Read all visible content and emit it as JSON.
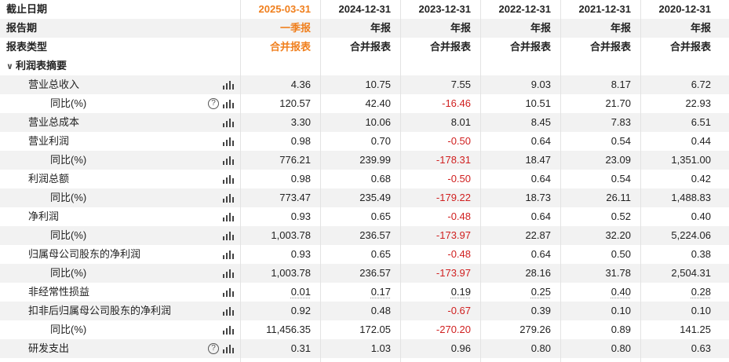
{
  "header": {
    "rows": [
      {
        "label": "截止日期",
        "values": [
          "2025-03-31",
          "2024-12-31",
          "2023-12-31",
          "2022-12-31",
          "2021-12-31",
          "2020-12-31"
        ]
      },
      {
        "label": "报告期",
        "values": [
          "一季报",
          "年报",
          "年报",
          "年报",
          "年报",
          "年报"
        ]
      },
      {
        "label": "报表类型",
        "values": [
          "合并报表",
          "合并报表",
          "合并报表",
          "合并报表",
          "合并报表",
          "合并报表"
        ]
      }
    ],
    "highlight_color": "#f07f1d"
  },
  "section": {
    "chevron": "∨",
    "label": "利润表摘要"
  },
  "rows": [
    {
      "label": "营业总收入",
      "indent": 1,
      "help": false,
      "values": [
        "4.36",
        "10.75",
        "7.55",
        "9.03",
        "8.17",
        "6.72"
      ]
    },
    {
      "label": "同比(%)",
      "indent": 2,
      "help": true,
      "values": [
        "120.57",
        "42.40",
        "-16.46",
        "10.51",
        "21.70",
        "22.93"
      ]
    },
    {
      "label": "营业总成本",
      "indent": 1,
      "help": false,
      "values": [
        "3.30",
        "10.06",
        "8.01",
        "8.45",
        "7.83",
        "6.51"
      ]
    },
    {
      "label": "营业利润",
      "indent": 1,
      "help": false,
      "values": [
        "0.98",
        "0.70",
        "-0.50",
        "0.64",
        "0.54",
        "0.44"
      ]
    },
    {
      "label": "同比(%)",
      "indent": 2,
      "help": false,
      "values": [
        "776.21",
        "239.99",
        "-178.31",
        "18.47",
        "23.09",
        "1,351.00"
      ]
    },
    {
      "label": "利润总额",
      "indent": 1,
      "help": false,
      "values": [
        "0.98",
        "0.68",
        "-0.50",
        "0.64",
        "0.54",
        "0.42"
      ]
    },
    {
      "label": "同比(%)",
      "indent": 2,
      "help": false,
      "values": [
        "773.47",
        "235.49",
        "-179.22",
        "18.73",
        "26.11",
        "1,488.83"
      ]
    },
    {
      "label": "净利润",
      "indent": 1,
      "help": false,
      "values": [
        "0.93",
        "0.65",
        "-0.48",
        "0.64",
        "0.52",
        "0.40"
      ]
    },
    {
      "label": "同比(%)",
      "indent": 2,
      "help": false,
      "values": [
        "1,003.78",
        "236.57",
        "-173.97",
        "22.87",
        "32.20",
        "5,224.06"
      ]
    },
    {
      "label": "归属母公司股东的净利润",
      "indent": 1,
      "help": false,
      "values": [
        "0.93",
        "0.65",
        "-0.48",
        "0.64",
        "0.50",
        "0.38"
      ]
    },
    {
      "label": "同比(%)",
      "indent": 2,
      "help": false,
      "values": [
        "1,003.78",
        "236.57",
        "-173.97",
        "28.16",
        "31.78",
        "2,504.31"
      ]
    },
    {
      "label": "非经常性损益",
      "indent": 1,
      "help": false,
      "underline": true,
      "values": [
        "0.01",
        "0.17",
        "0.19",
        "0.25",
        "0.40",
        "0.28"
      ]
    },
    {
      "label": "扣非后归属母公司股东的净利润",
      "indent": 1,
      "help": false,
      "values": [
        "0.92",
        "0.48",
        "-0.67",
        "0.39",
        "0.10",
        "0.10"
      ]
    },
    {
      "label": "同比(%)",
      "indent": 2,
      "help": false,
      "values": [
        "11,456.35",
        "172.05",
        "-270.20",
        "279.26",
        "0.89",
        "141.25"
      ]
    },
    {
      "label": "研发支出",
      "indent": 1,
      "help": true,
      "values": [
        "0.31",
        "1.03",
        "0.96",
        "0.80",
        "0.80",
        "0.63"
      ]
    }
  ],
  "icons": {
    "help": "help-circle-icon",
    "chart": "bar-chart-icon",
    "collapse": "chevron-down-icon"
  },
  "colors": {
    "negative": "#d02020",
    "shade": "#f2f2f2",
    "text": "#222222"
  }
}
